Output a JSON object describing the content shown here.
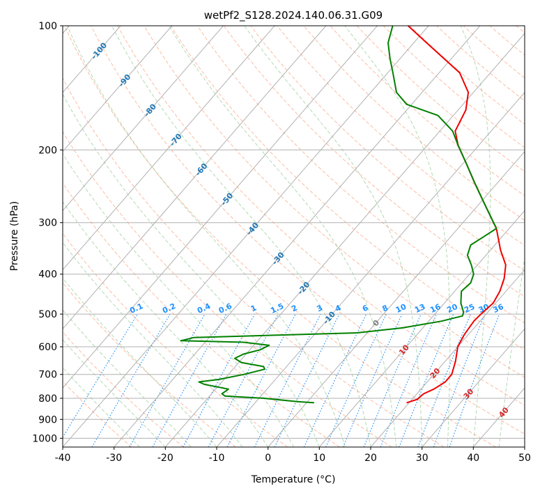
{
  "chart_data": {
    "type": "line",
    "subtype": "skew-t log-p diagram",
    "title": "wetPf2_S128.2024.140.06.31.G09",
    "xlabel": "Temperature (°C)",
    "ylabel": "Pressure (hPa)",
    "xlim": [
      -40,
      50
    ],
    "ylim": [
      1050,
      100
    ],
    "y_scale": "log",
    "grid": true,
    "x_ticks": [
      -40,
      -30,
      -20,
      -10,
      0,
      10,
      20,
      30,
      40,
      50
    ],
    "y_ticks": [
      1000,
      900,
      800,
      700,
      600,
      500,
      400,
      300,
      200,
      100
    ],
    "isotherm_labels": [
      -100,
      -90,
      -80,
      -70,
      -60,
      -50,
      -40,
      -30,
      -20,
      -10,
      0,
      10,
      20,
      30,
      40
    ],
    "mixing_ratio_labels": [
      "0.1",
      "0.2",
      "0.4",
      "0.6",
      "1",
      "1.5",
      "2",
      "3",
      "4",
      "6",
      "8",
      "10",
      "13",
      "16",
      "20",
      "25",
      "30",
      "36"
    ],
    "mixing_ratio_label_pressure": 500,
    "colors": {
      "temperature": "#ee0000",
      "dewpoint": "#008000",
      "isotherm_label": "#1f77b4",
      "isotherm_label_warm": "#d62728",
      "isotherm_label_zero": "#7f7f7f",
      "mixing_ratio": "#1e90ff",
      "dry_adiabat": "#fc8d62",
      "moist_adiabat": "#7fbf7f",
      "grid": "#b0b0b0"
    },
    "series": [
      {
        "kind": "temperature",
        "points": [
          {
            "p": 820,
            "t": 19.5
          },
          {
            "p": 805,
            "t": 21.0
          },
          {
            "p": 780,
            "t": 21.3
          },
          {
            "p": 760,
            "t": 22.5
          },
          {
            "p": 730,
            "t": 23.5
          },
          {
            "p": 700,
            "t": 23.5
          },
          {
            "p": 650,
            "t": 22.0
          },
          {
            "p": 600,
            "t": 20.0
          },
          {
            "p": 560,
            "t": 19.2
          },
          {
            "p": 520,
            "t": 18.8
          },
          {
            "p": 500,
            "t": 19.0
          },
          {
            "p": 470,
            "t": 19.5
          },
          {
            "p": 440,
            "t": 18.8
          },
          {
            "p": 410,
            "t": 17.5
          },
          {
            "p": 380,
            "t": 15.5
          },
          {
            "p": 350,
            "t": 12.0
          },
          {
            "p": 310,
            "t": 7.5
          },
          {
            "p": 270,
            "t": 1.0
          },
          {
            "p": 240,
            "t": -4.5
          },
          {
            "p": 215,
            "t": -9.5
          },
          {
            "p": 195,
            "t": -14.0
          },
          {
            "p": 180,
            "t": -17.0
          },
          {
            "p": 160,
            "t": -18.5
          },
          {
            "p": 145,
            "t": -21.0
          },
          {
            "p": 130,
            "t": -26.0
          },
          {
            "p": 120,
            "t": -31.5
          },
          {
            "p": 110,
            "t": -37.5
          },
          {
            "p": 100,
            "t": -44.0
          }
        ]
      },
      {
        "kind": "dewpoint",
        "points": [
          {
            "p": 820,
            "t": 1.5
          },
          {
            "p": 815,
            "t": -2.0
          },
          {
            "p": 800,
            "t": -9.0
          },
          {
            "p": 790,
            "t": -17.0
          },
          {
            "p": 780,
            "t": -18.0
          },
          {
            "p": 760,
            "t": -17.5
          },
          {
            "p": 740,
            "t": -23.0
          },
          {
            "p": 730,
            "t": -24.5
          },
          {
            "p": 720,
            "t": -21.0
          },
          {
            "p": 700,
            "t": -17.0
          },
          {
            "p": 680,
            "t": -13.8
          },
          {
            "p": 670,
            "t": -14.5
          },
          {
            "p": 655,
            "t": -19.5
          },
          {
            "p": 640,
            "t": -21.5
          },
          {
            "p": 625,
            "t": -20.5
          },
          {
            "p": 610,
            "t": -18.0
          },
          {
            "p": 595,
            "t": -17.0
          },
          {
            "p": 585,
            "t": -22.5
          },
          {
            "p": 580,
            "t": -35.0
          },
          {
            "p": 570,
            "t": -33.0
          },
          {
            "p": 555,
            "t": -2.0
          },
          {
            "p": 540,
            "t": 6.0
          },
          {
            "p": 520,
            "t": 12.5
          },
          {
            "p": 505,
            "t": 15.7
          },
          {
            "p": 495,
            "t": 15.3
          },
          {
            "p": 470,
            "t": 13.2
          },
          {
            "p": 440,
            "t": 11.3
          },
          {
            "p": 420,
            "t": 11.7
          },
          {
            "p": 400,
            "t": 10.8
          },
          {
            "p": 380,
            "t": 8.8
          },
          {
            "p": 360,
            "t": 6.4
          },
          {
            "p": 340,
            "t": 5.3
          },
          {
            "p": 325,
            "t": 6.4
          },
          {
            "p": 310,
            "t": 7.5
          },
          {
            "p": 270,
            "t": 1.0
          },
          {
            "p": 240,
            "t": -4.5
          },
          {
            "p": 215,
            "t": -9.5
          },
          {
            "p": 195,
            "t": -14.0
          },
          {
            "p": 180,
            "t": -17.5
          },
          {
            "p": 165,
            "t": -23.0
          },
          {
            "p": 155,
            "t": -31.0
          },
          {
            "p": 145,
            "t": -35.0
          },
          {
            "p": 130,
            "t": -39.0
          },
          {
            "p": 120,
            "t": -42.0
          },
          {
            "p": 110,
            "t": -45.0
          },
          {
            "p": 100,
            "t": -47.0
          }
        ]
      }
    ]
  }
}
